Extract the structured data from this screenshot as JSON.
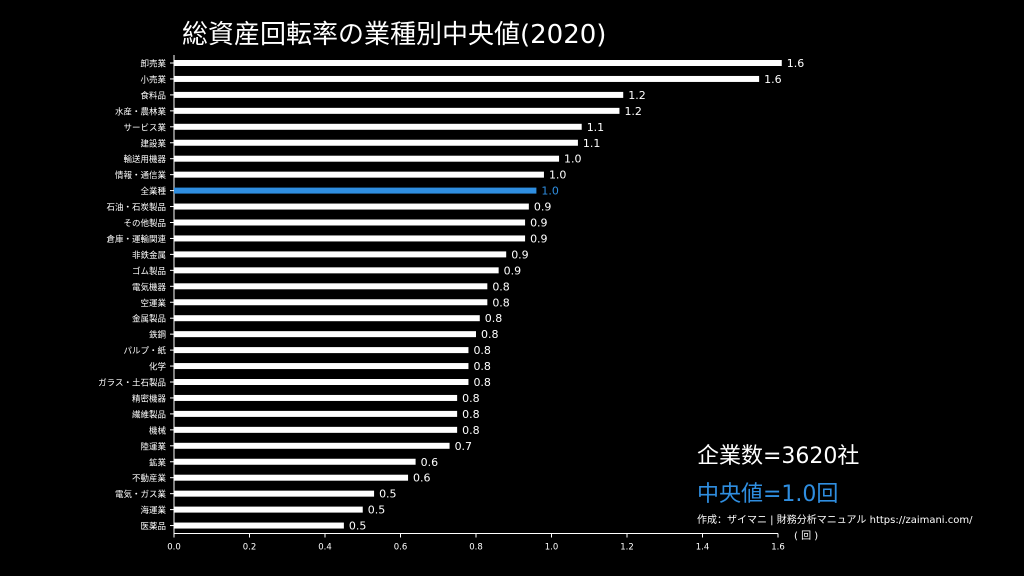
{
  "title": "総資産回転率の業種別中央値(2020)",
  "annotations": {
    "company_count": "企業数=3620社",
    "median": "中央値=1.0回",
    "credit": "作成：ザイマニ | 財務分析マニュアル https://zaimani.com/",
    "unit": "( 回 )"
  },
  "colors": {
    "background": "#000000",
    "bar": "#ffffff",
    "highlight": "#2f8ee0",
    "text": "#ffffff"
  },
  "chart_data": {
    "type": "bar",
    "orientation": "horizontal",
    "highlight_category": "全業種",
    "categories": [
      "卸売業",
      "小売業",
      "食料品",
      "水産・農林業",
      "サービス業",
      "建設業",
      "輸送用機器",
      "情報・通信業",
      "全業種",
      "石油・石炭製品",
      "その他製品",
      "倉庫・運輸関連",
      "非鉄金属",
      "ゴム製品",
      "電気機器",
      "空運業",
      "金属製品",
      "鉄鋼",
      "パルプ・紙",
      "化学",
      "ガラス・土石製品",
      "精密機器",
      "繊維製品",
      "機械",
      "陸運業",
      "鉱業",
      "不動産業",
      "電気・ガス業",
      "海運業",
      "医薬品"
    ],
    "values": [
      1.61,
      1.55,
      1.19,
      1.18,
      1.08,
      1.07,
      1.02,
      0.98,
      0.96,
      0.94,
      0.93,
      0.93,
      0.88,
      0.86,
      0.83,
      0.83,
      0.81,
      0.8,
      0.78,
      0.78,
      0.78,
      0.75,
      0.75,
      0.75,
      0.73,
      0.64,
      0.62,
      0.53,
      0.5,
      0.45
    ],
    "labels": [
      "1.6",
      "1.6",
      "1.2",
      "1.2",
      "1.1",
      "1.1",
      "1.0",
      "1.0",
      "1.0",
      "0.9",
      "0.9",
      "0.9",
      "0.9",
      "0.9",
      "0.8",
      "0.8",
      "0.8",
      "0.8",
      "0.8",
      "0.8",
      "0.8",
      "0.8",
      "0.8",
      "0.8",
      "0.7",
      "0.6",
      "0.6",
      "0.5",
      "0.5",
      "0.5"
    ],
    "xticks": [
      "0.0",
      "0.2",
      "0.4",
      "0.6",
      "0.8",
      "1.0",
      "1.2",
      "1.4",
      "1.6"
    ],
    "xlim": [
      0,
      1.6
    ]
  }
}
